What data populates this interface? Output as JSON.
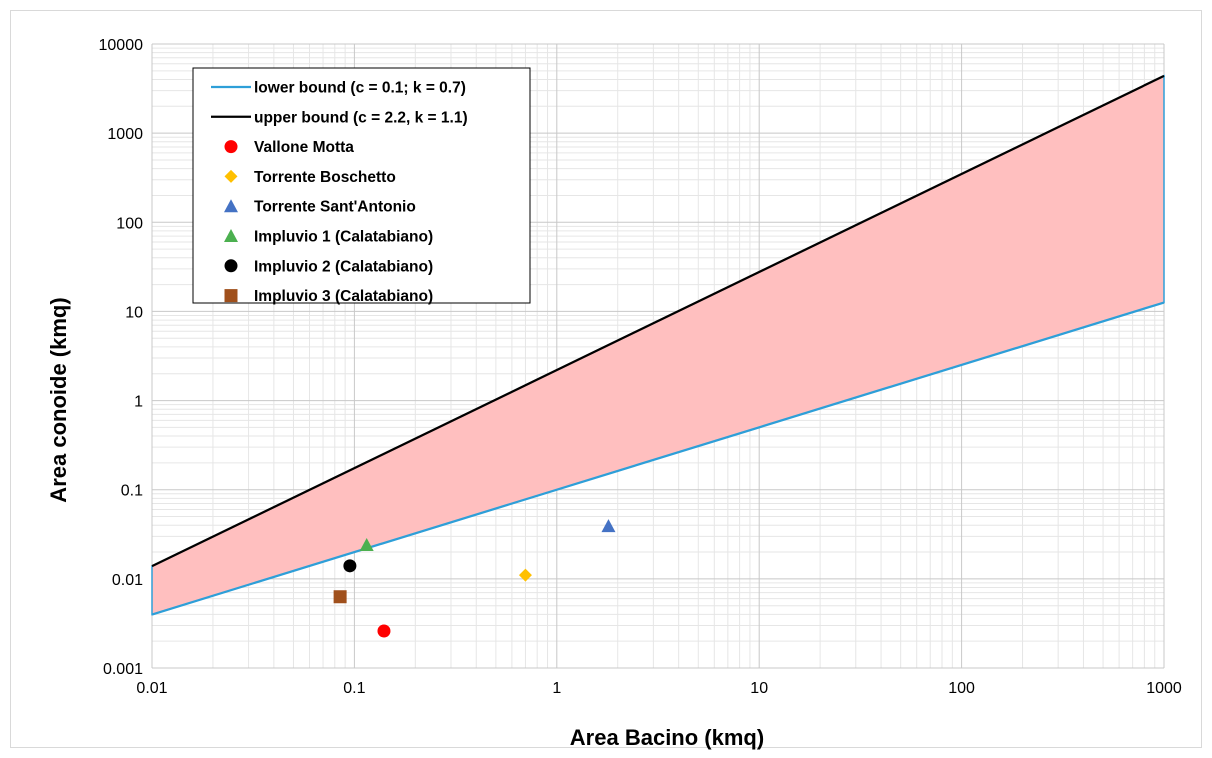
{
  "chart_data": {
    "type": "scatter",
    "title": "",
    "xlabel": "Area Bacino  (kmq)",
    "ylabel": "Area conoide  (kmq)",
    "xscale": "log",
    "yscale": "log",
    "xlim": [
      0.01,
      1000
    ],
    "ylim": [
      0.001,
      10000
    ],
    "grid": true,
    "legend_position": "top-left",
    "x_tick_labels": [
      "0.01",
      "0.1",
      "1",
      "10",
      "100",
      "1000"
    ],
    "y_tick_labels": [
      "0.001",
      "0.01",
      "0.1",
      "1",
      "10",
      "100",
      "1000",
      "10000"
    ],
    "band": {
      "fill_color": "#ffbfbf",
      "x_range": [
        0.01,
        1000
      ]
    },
    "lines": [
      {
        "name": "lower bound (c = 0.1; k = 0.7)",
        "c": 0.1,
        "k": 0.7,
        "color": "#2e9fd8",
        "x_range": [
          0.01,
          1000
        ]
      },
      {
        "name": "upper bound (c = 2.2, k = 1.1)",
        "c": 2.2,
        "k": 1.1,
        "color": "#000000",
        "x_range": [
          0.01,
          1000
        ]
      }
    ],
    "series": [
      {
        "name": "Vallone Motta",
        "marker": "circle",
        "color": "#ff0000",
        "points": [
          [
            0.14,
            0.0026
          ]
        ]
      },
      {
        "name": "Torrente Boschetto",
        "marker": "diamond",
        "color": "#ffc000",
        "points": [
          [
            0.7,
            0.011
          ]
        ]
      },
      {
        "name": "Torrente Sant'Antonio",
        "marker": "triangle",
        "color": "#4472c4",
        "points": [
          [
            1.8,
            0.039
          ]
        ]
      },
      {
        "name": "Impluvio 1 (Calatabiano)",
        "marker": "triangle",
        "color": "#4cb050",
        "points": [
          [
            0.115,
            0.024
          ]
        ]
      },
      {
        "name": "Impluvio 2 (Calatabiano)",
        "marker": "circle",
        "color": "#000000",
        "points": [
          [
            0.095,
            0.014
          ]
        ]
      },
      {
        "name": "Impluvio 3 (Calatabiano)",
        "marker": "square",
        "color": "#a0501c",
        "points": [
          [
            0.085,
            0.0063
          ]
        ]
      }
    ]
  }
}
